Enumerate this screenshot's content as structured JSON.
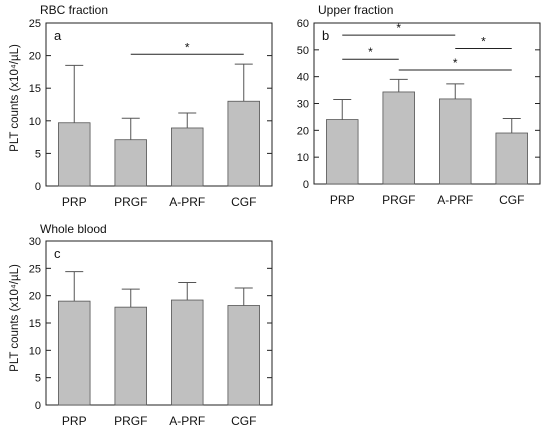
{
  "chart_data": [
    {
      "type": "bar",
      "panel_label": "a",
      "title": "RBC fraction",
      "ylabel": "PLT counts (x10⁴/µL)",
      "ylim": [
        0,
        25
      ],
      "yticks": [
        0,
        5,
        10,
        15,
        20,
        25
      ],
      "categories": [
        "PRP",
        "PRGF",
        "A-PRF",
        "CGF"
      ],
      "values": [
        9.7,
        7.1,
        8.9,
        13.0
      ],
      "errors": [
        8.8,
        3.3,
        2.3,
        5.7
      ],
      "bar_color": "#c0c0c0",
      "significance": [
        {
          "from": "PRGF",
          "to": "CGF",
          "y": 20.2,
          "label": "*"
        }
      ]
    },
    {
      "type": "bar",
      "panel_label": "b",
      "title": "Upper fraction",
      "ylabel": "",
      "ylim": [
        0,
        60
      ],
      "yticks": [
        0,
        10,
        20,
        30,
        40,
        50,
        60
      ],
      "categories": [
        "PRP",
        "PRGF",
        "A-PRF",
        "CGF"
      ],
      "values": [
        24.0,
        34.3,
        31.7,
        19.0
      ],
      "errors": [
        7.5,
        4.7,
        5.6,
        5.4
      ],
      "bar_color": "#c0c0c0",
      "significance": [
        {
          "from": "PRP",
          "to": "A-PRF",
          "y": 55.5,
          "label": "*"
        },
        {
          "from": "PRP",
          "to": "PRGF",
          "y": 46.5,
          "label": "*"
        },
        {
          "from": "A-PRF",
          "to": "CGF",
          "y": 50.5,
          "label": "*"
        },
        {
          "from": "PRGF",
          "to": "CGF",
          "y": 42.5,
          "label": "*"
        }
      ]
    },
    {
      "type": "bar",
      "panel_label": "c",
      "title": "Whole blood",
      "ylabel": "PLT counts (x10⁴/µL)",
      "ylim": [
        0,
        30
      ],
      "yticks": [
        0,
        5,
        10,
        15,
        20,
        25,
        30
      ],
      "categories": [
        "PRP",
        "PRGF",
        "A-PRF",
        "CGF"
      ],
      "values": [
        19.0,
        17.9,
        19.2,
        18.2
      ],
      "errors": [
        5.4,
        3.3,
        3.2,
        3.2
      ],
      "bar_color": "#c0c0c0",
      "significance": []
    }
  ]
}
